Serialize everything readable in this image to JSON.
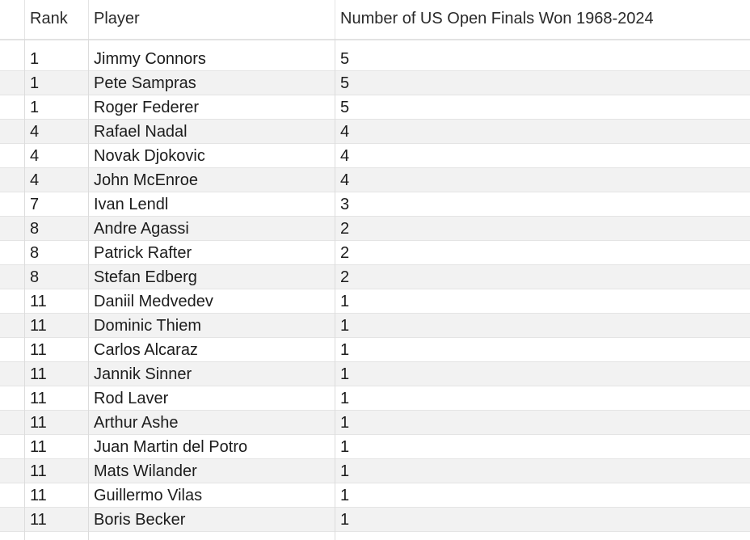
{
  "table": {
    "columns": [
      "Rank",
      "Player",
      "Number of US Open Finals Won 1968-2024"
    ],
    "rows": [
      {
        "rank": "1",
        "player": "Jimmy Connors",
        "won": "5"
      },
      {
        "rank": "1",
        "player": "Pete Sampras",
        "won": "5"
      },
      {
        "rank": "1",
        "player": "Roger Federer",
        "won": "5"
      },
      {
        "rank": "4",
        "player": "Rafael Nadal",
        "won": "4"
      },
      {
        "rank": "4",
        "player": "Novak Djokovic",
        "won": "4"
      },
      {
        "rank": "4",
        "player": "John McEnroe",
        "won": "4"
      },
      {
        "rank": "7",
        "player": "Ivan Lendl",
        "won": "3"
      },
      {
        "rank": "8",
        "player": "Andre Agassi",
        "won": "2"
      },
      {
        "rank": "8",
        "player": "Patrick Rafter",
        "won": "2"
      },
      {
        "rank": "8",
        "player": "Stefan Edberg",
        "won": "2"
      },
      {
        "rank": "11",
        "player": "Daniil Medvedev",
        "won": "1"
      },
      {
        "rank": "11",
        "player": "Dominic Thiem",
        "won": "1"
      },
      {
        "rank": "11",
        "player": "Carlos Alcaraz",
        "won": "1"
      },
      {
        "rank": "11",
        "player": "Jannik Sinner",
        "won": "1"
      },
      {
        "rank": "11",
        "player": "Rod Laver",
        "won": "1"
      },
      {
        "rank": "11",
        "player": "Arthur Ashe",
        "won": "1"
      },
      {
        "rank": "11",
        "player": "Juan Martin del Potro",
        "won": "1"
      },
      {
        "rank": "11",
        "player": "Mats Wilander",
        "won": "1"
      },
      {
        "rank": "11",
        "player": "Guillermo Vilas",
        "won": "1"
      },
      {
        "rank": "11",
        "player": "Boris Becker",
        "won": "1"
      }
    ]
  },
  "colors": {
    "background": "#ffffff",
    "row_alt": "#f2f2f2",
    "grid_line": "#dcdcdc",
    "text": "#1c1c1c"
  }
}
